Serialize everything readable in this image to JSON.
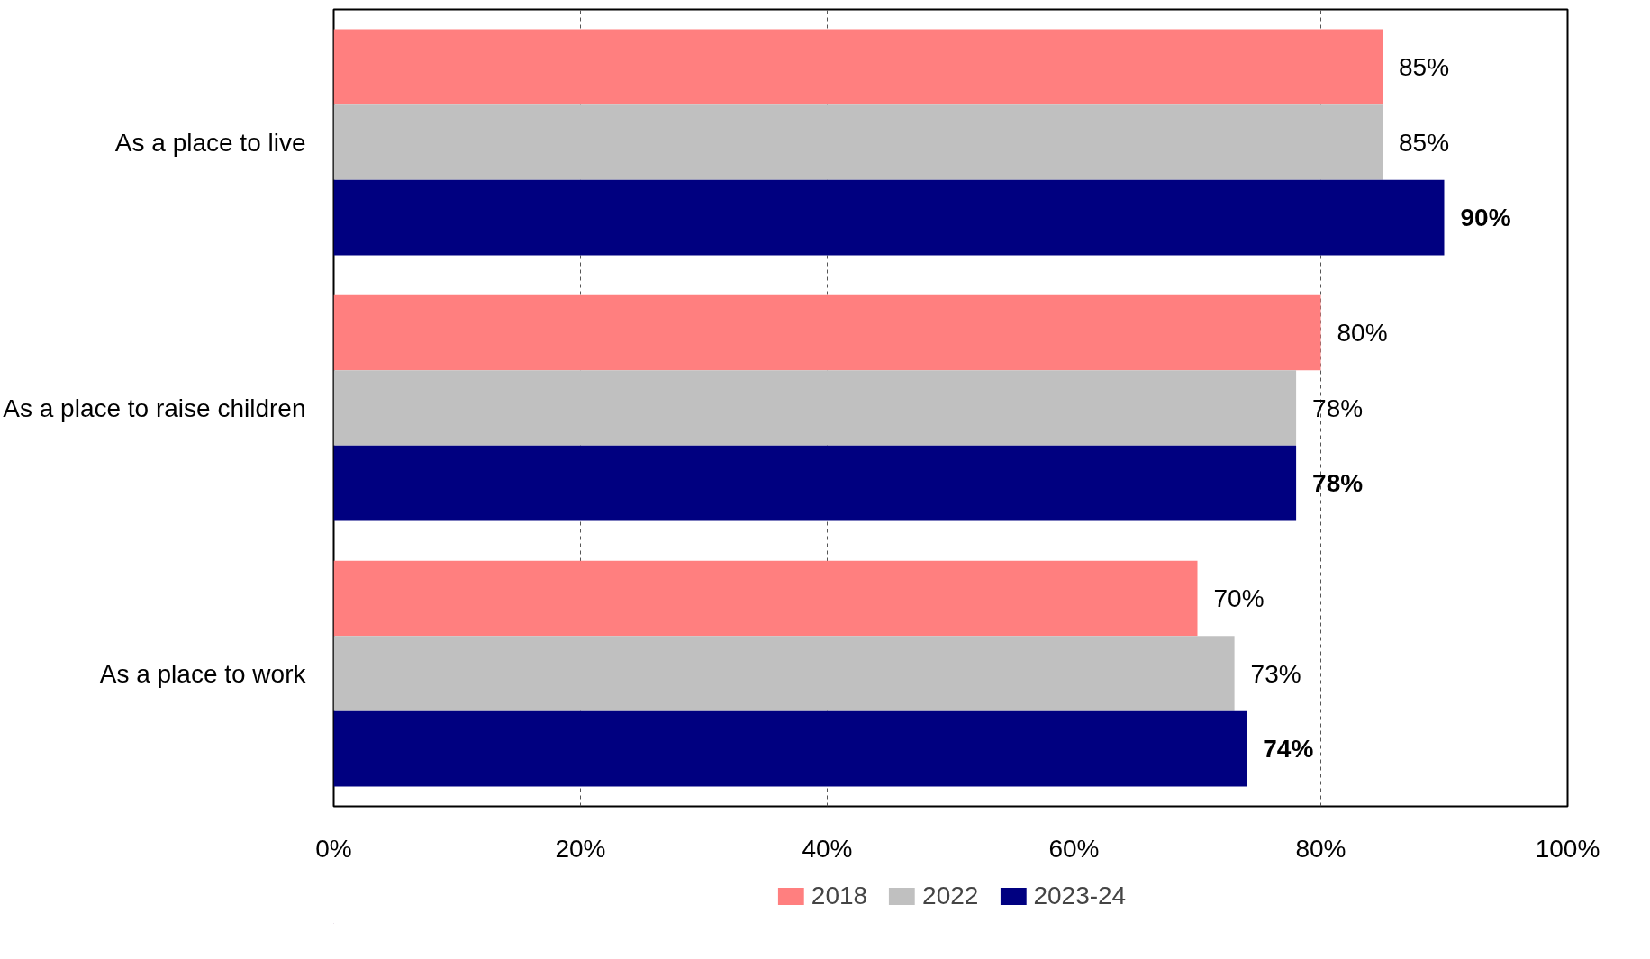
{
  "chart_data": {
    "type": "bar",
    "orientation": "horizontal",
    "categories": [
      "As a place to live",
      "As a place to raise children",
      "As a place to work"
    ],
    "series": [
      {
        "name": "2018",
        "color": "#ff7f7f",
        "values": [
          85,
          80,
          70
        ],
        "value_labels": [
          "85%",
          "80%",
          "70%"
        ]
      },
      {
        "name": "2022",
        "color": "#c0c0c0",
        "values": [
          85,
          78,
          73
        ],
        "value_labels": [
          "85%",
          "78%",
          "73%"
        ]
      },
      {
        "name": "2023-24",
        "color": "#000080",
        "values": [
          90,
          78,
          74
        ],
        "value_labels": [
          "90%",
          "78%",
          "74%"
        ]
      }
    ],
    "xlim": [
      0,
      100
    ],
    "xticks": [
      {
        "value": 0,
        "label": "0%"
      },
      {
        "value": 20,
        "label": "20%"
      },
      {
        "value": 40,
        "label": "40%"
      },
      {
        "value": 60,
        "label": "60%"
      },
      {
        "value": 80,
        "label": "80%"
      },
      {
        "value": 100,
        "label": "100%"
      }
    ],
    "grid": "x",
    "legend": "bottom"
  }
}
